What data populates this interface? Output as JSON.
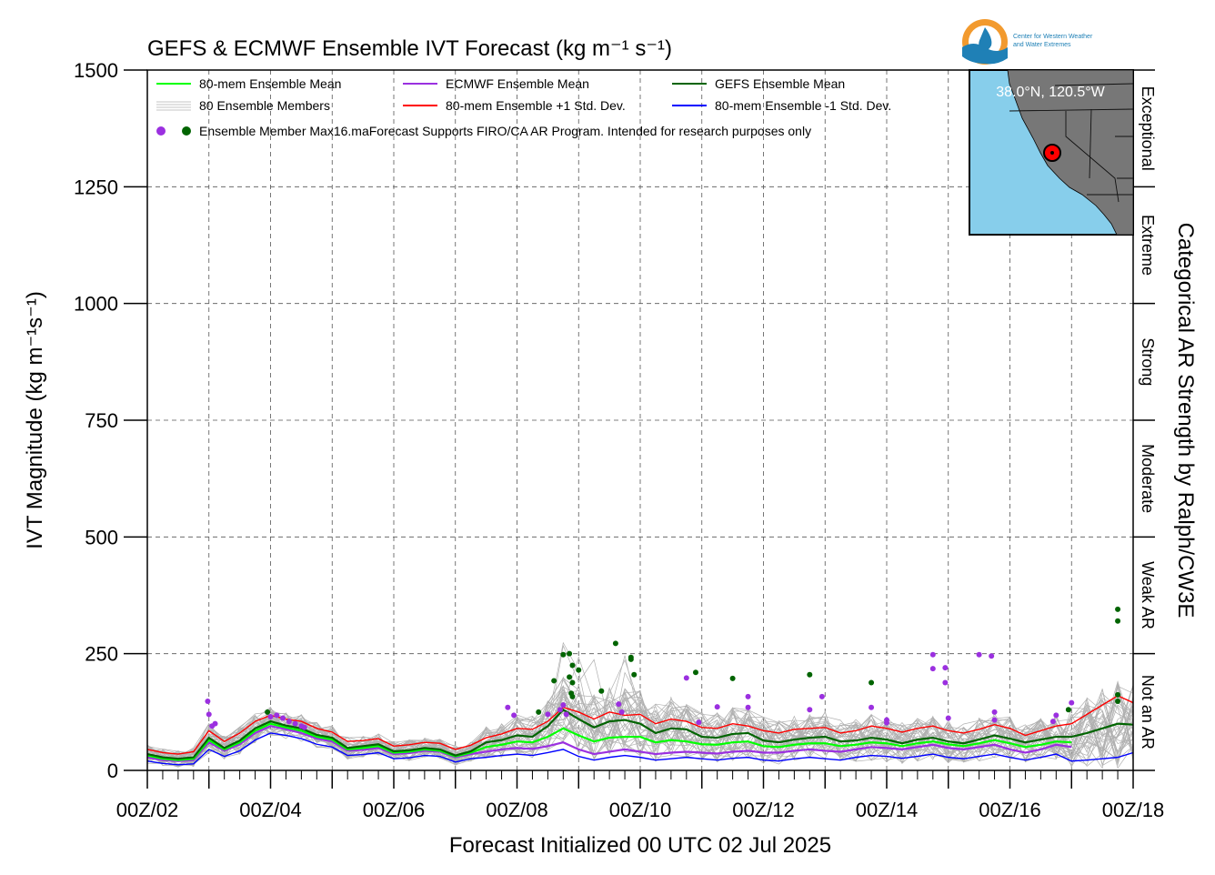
{
  "chart_data": {
    "type": "line",
    "title": "GEFS & ECMWF Ensemble IVT Forecast (kg m⁻¹ s⁻¹)",
    "xlabel": "Forecast Initialized 00 UTC 02 Jul 2025",
    "ylabel": "IVT Magnitude (kg m⁻¹s⁻¹)",
    "right_label": "Categorical AR Strength by Ralph/CW3E",
    "ylim": [
      0,
      1500
    ],
    "xlim_days": [
      2,
      18
    ],
    "yticks": [
      "0",
      "250",
      "500",
      "750",
      "1000",
      "1250",
      "1500"
    ],
    "xticks": [
      "00Z/02",
      "00Z/04",
      "00Z/06",
      "00Z/08",
      "00Z/10",
      "00Z/12",
      "00Z/14",
      "00Z/16",
      "00Z/18"
    ],
    "grid": true,
    "legend_position": "top-left",
    "categories_right": [
      "Not an AR",
      "Weak AR",
      "Moderate",
      "Strong",
      "Extreme",
      "Exceptional"
    ],
    "category_bounds": [
      0,
      250,
      500,
      750,
      1000,
      1250,
      1500
    ],
    "legend": [
      {
        "label": "80-mem Ensemble Mean",
        "color": "#00ff00",
        "kind": "line"
      },
      {
        "label": "ECMWF Ensemble Mean",
        "color": "#9b30e0",
        "kind": "line"
      },
      {
        "label": "GEFS Ensemble Mean",
        "color": "#006400",
        "kind": "line"
      },
      {
        "label": "80 Ensemble Members",
        "color": "#aaaaaa",
        "kind": "members"
      },
      {
        "label": "80-mem Ensemble +1 Std. Dev.",
        "color": "#ff0000",
        "kind": "line"
      },
      {
        "label": "80-mem Ensemble -1 Std. Dev.",
        "color": "#0000ff",
        "kind": "line"
      },
      {
        "label": "Ensemble Member Max16.maForecast Supports FIRO/CA AR Program. Intended for research purposes only",
        "color": "#9b30e0",
        "color2": "#006400",
        "kind": "dots"
      }
    ],
    "series": [
      {
        "name": "80-mem Ensemble Mean",
        "color": "#00ff00",
        "x": [
          2,
          2.25,
          2.5,
          2.75,
          3,
          3.25,
          3.5,
          3.75,
          4,
          4.25,
          4.5,
          4.75,
          5,
          5.25,
          5.5,
          5.75,
          6,
          6.25,
          6.5,
          6.75,
          7,
          7.25,
          7.5,
          7.75,
          8,
          8.25,
          8.5,
          8.75,
          9,
          9.25,
          9.5,
          9.75,
          10,
          10.25,
          10.5,
          10.75,
          11,
          11.25,
          11.5,
          11.75,
          12,
          12.25,
          12.5,
          12.75,
          13,
          13.25,
          13.5,
          13.75,
          14,
          14.25,
          14.5,
          14.75,
          15,
          15.25,
          15.5,
          15.75,
          16,
          16.25,
          16.5,
          16.75,
          17
        ],
        "y": [
          32,
          25,
          22,
          25,
          65,
          45,
          60,
          85,
          100,
          92,
          85,
          72,
          66,
          45,
          48,
          52,
          38,
          40,
          45,
          42,
          30,
          38,
          50,
          55,
          62,
          60,
          72,
          90,
          75,
          62,
          70,
          72,
          72,
          60,
          65,
          62,
          56,
          55,
          60,
          62,
          52,
          50,
          55,
          58,
          58,
          52,
          55,
          60,
          58,
          52,
          58,
          62,
          56,
          52,
          58,
          65,
          58,
          50,
          55,
          62,
          60
        ]
      },
      {
        "name": "ECMWF Ensemble Mean",
        "color": "#9b30e0",
        "x": [
          2,
          2.25,
          2.5,
          2.75,
          3,
          3.25,
          3.5,
          3.75,
          4,
          4.25,
          4.5,
          4.75,
          5,
          5.25,
          5.5,
          5.75,
          6,
          6.25,
          6.5,
          6.75,
          7,
          7.25,
          7.5,
          7.75,
          8,
          8.25,
          8.5,
          8.75,
          9,
          9.25,
          9.5,
          9.75,
          10,
          10.25,
          10.5,
          10.75,
          11,
          11.25,
          11.5,
          11.75,
          12,
          12.25,
          12.5,
          12.75,
          13,
          13.25,
          13.5,
          13.75,
          14,
          14.25,
          14.5,
          14.75,
          15,
          15.25,
          15.5,
          15.75,
          16,
          16.25,
          16.5,
          16.75,
          17
        ],
        "y": [
          28,
          22,
          20,
          22,
          60,
          42,
          56,
          80,
          95,
          88,
          80,
          68,
          62,
          42,
          44,
          48,
          35,
          37,
          42,
          40,
          28,
          35,
          40,
          45,
          48,
          46,
          52,
          60,
          45,
          35,
          40,
          45,
          40,
          35,
          38,
          40,
          38,
          36,
          40,
          42,
          38,
          38,
          42,
          45,
          42,
          40,
          45,
          50,
          48,
          45,
          50,
          55,
          48,
          45,
          50,
          55,
          45,
          38,
          45,
          55,
          50
        ]
      },
      {
        "name": "GEFS Ensemble Mean",
        "color": "#006400",
        "x": [
          2,
          2.25,
          2.5,
          2.75,
          3,
          3.25,
          3.5,
          3.75,
          4,
          4.25,
          4.5,
          4.75,
          5,
          5.25,
          5.5,
          5.75,
          6,
          6.25,
          6.5,
          6.75,
          7,
          7.25,
          7.5,
          7.75,
          8,
          8.25,
          8.5,
          8.75,
          9,
          9.25,
          9.5,
          9.75,
          10,
          10.25,
          10.5,
          10.75,
          11,
          11.25,
          11.5,
          11.75,
          12,
          12.25,
          12.5,
          12.75,
          13,
          13.25,
          13.5,
          13.75,
          14,
          14.25,
          14.5,
          14.75,
          15,
          15.25,
          15.5,
          15.75,
          16,
          16.25,
          16.5,
          16.75,
          17,
          17.25,
          17.5,
          17.75,
          18
        ],
        "y": [
          35,
          28,
          25,
          28,
          70,
          48,
          64,
          90,
          105,
          96,
          90,
          76,
          70,
          48,
          52,
          56,
          41,
          43,
          48,
          45,
          32,
          41,
          60,
          65,
          75,
          72,
          95,
          130,
          110,
          92,
          105,
          108,
          100,
          80,
          90,
          88,
          72,
          70,
          78,
          80,
          64,
          60,
          66,
          70,
          72,
          62,
          64,
          70,
          66,
          58,
          66,
          70,
          62,
          58,
          66,
          75,
          68,
          60,
          66,
          72,
          72,
          80,
          90,
          100,
          98
        ]
      },
      {
        "name": "80-mem Ensemble +1 Std. Dev.",
        "color": "#ff0000",
        "x": [
          2,
          2.25,
          2.5,
          2.75,
          3,
          3.25,
          3.5,
          3.75,
          4,
          4.25,
          4.5,
          4.75,
          5,
          5.25,
          5.5,
          5.75,
          6,
          6.25,
          6.5,
          6.75,
          7,
          7.25,
          7.5,
          7.75,
          8,
          8.25,
          8.5,
          8.75,
          9,
          9.25,
          9.5,
          9.75,
          10,
          10.25,
          10.5,
          10.75,
          11,
          11.25,
          11.5,
          11.75,
          12,
          12.25,
          12.5,
          12.75,
          13,
          13.25,
          13.5,
          13.75,
          14,
          14.25,
          14.5,
          14.75,
          15,
          15.25,
          15.5,
          15.75,
          16,
          16.25,
          16.5,
          16.75,
          17,
          17.25,
          17.5,
          17.75,
          18
        ],
        "y": [
          45,
          38,
          35,
          40,
          85,
          62,
          80,
          105,
          118,
          110,
          105,
          90,
          82,
          62,
          64,
          68,
          52,
          55,
          60,
          58,
          45,
          54,
          70,
          78,
          90,
          88,
          105,
          135,
          125,
          110,
          125,
          118,
          120,
          100,
          110,
          105,
          92,
          90,
          100,
          95,
          85,
          80,
          88,
          90,
          92,
          80,
          85,
          95,
          90,
          82,
          90,
          95,
          85,
          80,
          88,
          98,
          90,
          75,
          85,
          95,
          100,
          120,
          140,
          160,
          145
        ]
      },
      {
        "name": "80-mem Ensemble -1 Std. Dev.",
        "color": "#0000ff",
        "x": [
          2,
          2.25,
          2.5,
          2.75,
          3,
          3.25,
          3.5,
          3.75,
          4,
          4.25,
          4.5,
          4.75,
          5,
          5.25,
          5.5,
          5.75,
          6,
          6.25,
          6.5,
          6.75,
          7,
          7.25,
          7.5,
          7.75,
          8,
          8.25,
          8.5,
          8.75,
          9,
          9.25,
          9.5,
          9.75,
          10,
          10.25,
          10.5,
          10.75,
          11,
          11.25,
          11.5,
          11.75,
          12,
          12.25,
          12.5,
          12.75,
          13,
          13.25,
          13.5,
          13.75,
          14,
          14.25,
          14.5,
          14.75,
          15,
          15.25,
          15.5,
          15.75,
          16,
          16.25,
          16.5,
          16.75,
          17,
          17.25,
          17.5,
          17.75,
          18
        ],
        "y": [
          20,
          15,
          12,
          14,
          45,
          30,
          42,
          65,
          80,
          75,
          68,
          56,
          50,
          32,
          34,
          38,
          25,
          27,
          32,
          30,
          18,
          25,
          28,
          32,
          35,
          32,
          38,
          45,
          30,
          22,
          28,
          32,
          28,
          22,
          25,
          28,
          25,
          22,
          26,
          28,
          22,
          20,
          25,
          28,
          25,
          22,
          28,
          32,
          30,
          26,
          30,
          35,
          28,
          25,
          30,
          35,
          28,
          22,
          28,
          35,
          20,
          22,
          25,
          28,
          38
        ]
      }
    ],
    "max_markers": {
      "ecmwf": [
        [
          2.98,
          148
        ],
        [
          3.0,
          120
        ],
        [
          3.05,
          95
        ],
        [
          3.1,
          100
        ],
        [
          4.0,
          115
        ],
        [
          4.1,
          118
        ],
        [
          4.2,
          112
        ],
        [
          4.3,
          105
        ],
        [
          4.4,
          100
        ],
        [
          4.5,
          95
        ],
        [
          4.55,
          92
        ],
        [
          7.85,
          135
        ],
        [
          7.95,
          118
        ],
        [
          8.5,
          120
        ],
        [
          8.7,
          130
        ],
        [
          8.75,
          140
        ],
        [
          8.8,
          120
        ],
        [
          9.65,
          142
        ],
        [
          9.7,
          125
        ],
        [
          10.75,
          198
        ],
        [
          10.95,
          103
        ],
        [
          11.25,
          136
        ],
        [
          11.75,
          158
        ],
        [
          11.75,
          135
        ],
        [
          12.75,
          130
        ],
        [
          12.95,
          158
        ],
        [
          13.75,
          135
        ],
        [
          14.0,
          108
        ],
        [
          14.0,
          102
        ],
        [
          14.75,
          248
        ],
        [
          14.75,
          218
        ],
        [
          14.95,
          220
        ],
        [
          14.95,
          188
        ],
        [
          15.0,
          112
        ],
        [
          15.5,
          248
        ],
        [
          15.7,
          245
        ],
        [
          15.75,
          125
        ],
        [
          15.75,
          108
        ],
        [
          16.75,
          118
        ],
        [
          16.7,
          105
        ],
        [
          17.0,
          145
        ]
      ],
      "gefs": [
        [
          3.95,
          125
        ],
        [
          8.35,
          125
        ],
        [
          8.6,
          192
        ],
        [
          8.75,
          248
        ],
        [
          8.85,
          250
        ],
        [
          8.9,
          225
        ],
        [
          8.85,
          200
        ],
        [
          8.9,
          188
        ],
        [
          8.88,
          165
        ],
        [
          8.9,
          158
        ],
        [
          9.0,
          215
        ],
        [
          9.37,
          170
        ],
        [
          9.6,
          272
        ],
        [
          9.85,
          242
        ],
        [
          9.85,
          238
        ],
        [
          9.9,
          205
        ],
        [
          10.9,
          210
        ],
        [
          11.5,
          197
        ],
        [
          12.75,
          205
        ],
        [
          13.75,
          188
        ],
        [
          16.95,
          130
        ],
        [
          17.75,
          345
        ],
        [
          17.75,
          320
        ],
        [
          17.75,
          162
        ],
        [
          17.75,
          148
        ]
      ]
    }
  },
  "inset_map": {
    "label": "38.0°N, 120.5°W",
    "ocean_color": "#87ceeb",
    "land_color": "#777777",
    "marker_color": "#ff0000"
  },
  "logo": {
    "line1": "Center for Western Weather",
    "line2": "and Water Extremes",
    "orange": "#f29a2e",
    "blue": "#1f80b6"
  }
}
